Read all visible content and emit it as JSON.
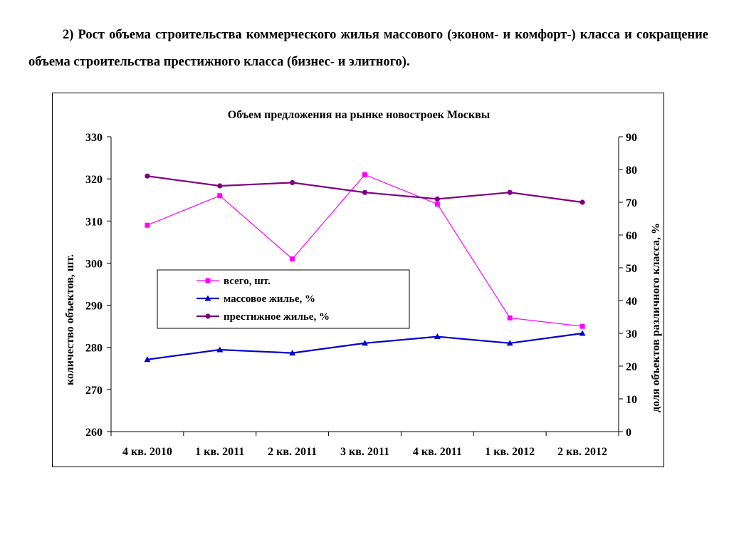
{
  "intro_text": "2) Рост объема строительства коммерческого жилья массового (эконом- и комфорт-) класса и сокращение объема строительства престижного класса (бизнес- и элитного).",
  "chart_data": {
    "type": "line",
    "title": "Объем предложения на рынке новостроек Москвы",
    "categories": [
      "4 кв. 2010",
      "1 кв. 2011",
      "2 кв. 2011",
      "3 кв. 2011",
      "4 кв. 2011",
      "1 кв. 2012",
      "2 кв. 2012"
    ],
    "ylabel": "количество объектов, шт.",
    "ylabel_right": "доля объектов различного класса, %",
    "ylim": [
      260,
      330
    ],
    "ylim_right": [
      0,
      90
    ],
    "yticks": [
      "260",
      "270",
      "280",
      "290",
      "300",
      "310",
      "320",
      "330"
    ],
    "yticks_right": [
      "0",
      "10",
      "20",
      "30",
      "40",
      "50",
      "60",
      "70",
      "80",
      "90"
    ],
    "grid": false,
    "legend_position": "center-left",
    "series": [
      {
        "name": "всего, шт.",
        "axis": "left",
        "color": "#ff00ff",
        "marker": "square",
        "values": [
          309,
          316,
          301,
          321,
          314,
          287,
          285
        ]
      },
      {
        "name": "массовое жилье, %",
        "axis": "right",
        "color": "#0000cc",
        "marker": "triangle",
        "values": [
          22,
          25,
          24,
          27,
          29,
          27,
          30
        ]
      },
      {
        "name": "престижное жилье, %",
        "axis": "right",
        "color": "#800080",
        "marker": "circle",
        "values": [
          78,
          75,
          76,
          73,
          71,
          73,
          70
        ]
      }
    ]
  }
}
